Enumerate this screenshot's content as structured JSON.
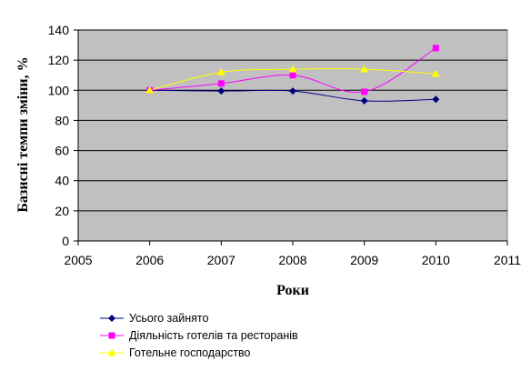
{
  "chart_data": {
    "type": "line",
    "xlabel": "Роки",
    "ylabel": "Базисні темпи зміни, %",
    "xlim": [
      2005,
      2011
    ],
    "ylim": [
      0,
      140
    ],
    "x_ticks": [
      2005,
      2006,
      2007,
      2008,
      2009,
      2010,
      2011
    ],
    "y_ticks": [
      0,
      20,
      40,
      60,
      80,
      100,
      120,
      140
    ],
    "grid": "horizontal",
    "plot_background": "#c0c0c0",
    "legend_position": "bottom",
    "series": [
      {
        "name": "Усього зайнято",
        "color": "#000080",
        "marker": "diamond",
        "x": [
          2006,
          2007,
          2008,
          2009,
          2010
        ],
        "values": [
          100,
          99.5,
          99.5,
          93,
          94
        ]
      },
      {
        "name": "Діяльність готелів та ресторанів",
        "color": "#ff00ff",
        "marker": "square",
        "x": [
          2006,
          2007,
          2008,
          2009,
          2010
        ],
        "values": [
          100,
          104.5,
          110,
          99,
          128
        ]
      },
      {
        "name": "Готельне господарство",
        "color": "#ffff00",
        "marker": "triangle",
        "x": [
          2006,
          2007,
          2008,
          2009,
          2010
        ],
        "values": [
          100,
          112,
          114,
          114,
          111
        ]
      }
    ]
  }
}
